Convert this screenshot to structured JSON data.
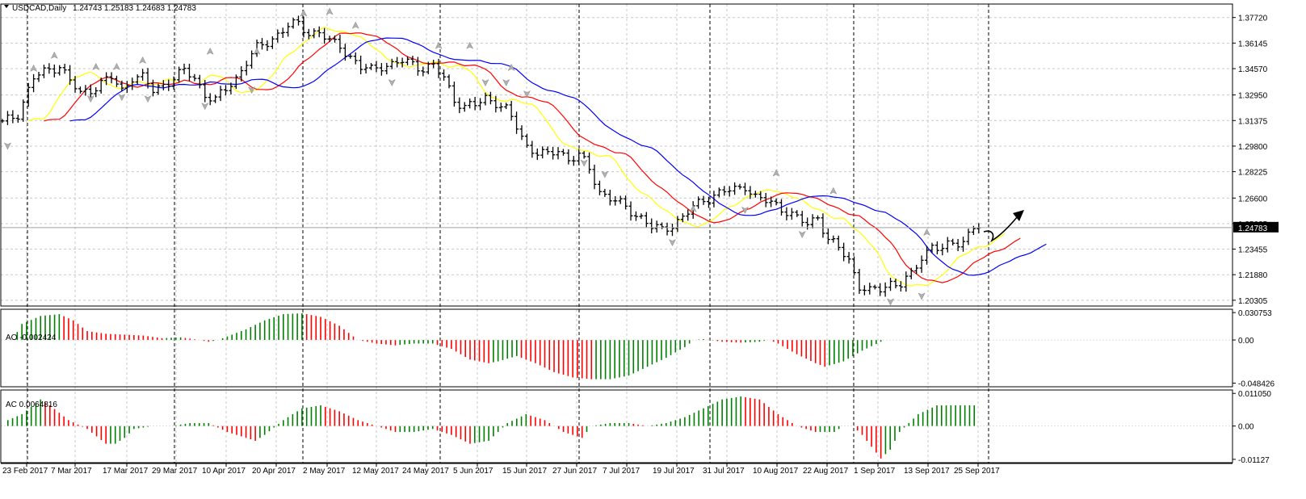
{
  "window": {
    "title": "USDCAD,Daily",
    "ohlc": "1.24743 1.25183 1.24683 1.24783",
    "title_arrow_icon": "triangle-down-icon"
  },
  "colors": {
    "background": "#ffffff",
    "grid": "#c8c8c8",
    "bars": "#000000",
    "fractal": "#b0b0b0",
    "ma_fast": "#ffff00",
    "ma_mid": "#ff0000",
    "ma_slow": "#0000ff",
    "osc_up": "#008000",
    "osc_down": "#ff0000",
    "price_tag_bg": "#000000",
    "price_tag_text": "#ffffff"
  },
  "chart_data": [
    {
      "type": "candlestick",
      "title": "USDCAD,Daily",
      "subtitle": "1.24743 1.25183 1.24683 1.24783",
      "y_ticks": [
        "1.37720",
        "1.36145",
        "1.34570",
        "1.32950",
        "1.31375",
        "1.29800",
        "1.28225",
        "1.26600",
        "1.25025",
        "1.23455",
        "1.21880",
        "1.20305"
      ],
      "current_price": "1.24783",
      "ylim": [
        1.1995,
        1.3855
      ],
      "grid": true,
      "x_labels": [
        "23 Feb 2017",
        "7 Mar 2017",
        "17 Mar 2017",
        "29 Mar 2017",
        "10 Apr 2017",
        "20 Apr 2017",
        "2 May 2017",
        "12 May 2017",
        "24 May 2017",
        "5 Jun 2017",
        "15 Jun 2017",
        "27 Jun 2017",
        "7 Jul 2017",
        "19 Jul 2017",
        "31 Jul 2017",
        "10 Aug 2017",
        "22 Aug 2017",
        "1 Sep 2017",
        "13 Sep 2017",
        "25 Sep 2017"
      ],
      "close_keypoints": [
        [
          0,
          1.312
        ],
        [
          3,
          1.318
        ],
        [
          6,
          1.34
        ],
        [
          9,
          1.345
        ],
        [
          11,
          1.348
        ],
        [
          13,
          1.338
        ],
        [
          15,
          1.33
        ],
        [
          17,
          1.333
        ],
        [
          19,
          1.337
        ],
        [
          21,
          1.34
        ],
        [
          23,
          1.332
        ],
        [
          25,
          1.341
        ],
        [
          27,
          1.34
        ],
        [
          29,
          1.332
        ],
        [
          31,
          1.336
        ],
        [
          33,
          1.34
        ],
        [
          35,
          1.344
        ],
        [
          37,
          1.34
        ],
        [
          39,
          1.33
        ],
        [
          41,
          1.326
        ],
        [
          43,
          1.333
        ],
        [
          45,
          1.34
        ],
        [
          47,
          1.35
        ],
        [
          49,
          1.358
        ],
        [
          51,
          1.362
        ],
        [
          53,
          1.367
        ],
        [
          55,
          1.372
        ],
        [
          57,
          1.373
        ],
        [
          59,
          1.368
        ],
        [
          61,
          1.368
        ],
        [
          63,
          1.362
        ],
        [
          65,
          1.36
        ],
        [
          67,
          1.353
        ],
        [
          69,
          1.346
        ],
        [
          71,
          1.345
        ],
        [
          73,
          1.348
        ],
        [
          75,
          1.348
        ],
        [
          77,
          1.35
        ],
        [
          79,
          1.349
        ],
        [
          81,
          1.346
        ],
        [
          83,
          1.347
        ],
        [
          85,
          1.34
        ],
        [
          87,
          1.327
        ],
        [
          89,
          1.322
        ],
        [
          91,
          1.323
        ],
        [
          93,
          1.328
        ],
        [
          95,
          1.325
        ],
        [
          97,
          1.32
        ],
        [
          99,
          1.31
        ],
        [
          101,
          1.298
        ],
        [
          103,
          1.294
        ],
        [
          105,
          1.292
        ],
        [
          107,
          1.296
        ],
        [
          109,
          1.29
        ],
        [
          111,
          1.292
        ],
        [
          113,
          1.284
        ],
        [
          115,
          1.27
        ],
        [
          117,
          1.266
        ],
        [
          119,
          1.262
        ],
        [
          121,
          1.258
        ],
        [
          123,
          1.254
        ],
        [
          125,
          1.248
        ],
        [
          127,
          1.246
        ],
        [
          129,
          1.25
        ],
        [
          131,
          1.254
        ],
        [
          133,
          1.26
        ],
        [
          135,
          1.265
        ],
        [
          137,
          1.268
        ],
        [
          139,
          1.27
        ],
        [
          141,
          1.271
        ],
        [
          143,
          1.274
        ],
        [
          145,
          1.266
        ],
        [
          147,
          1.264
        ],
        [
          149,
          1.262
        ],
        [
          151,
          1.258
        ],
        [
          153,
          1.253
        ],
        [
          155,
          1.25
        ],
        [
          157,
          1.255
        ],
        [
          159,
          1.24
        ],
        [
          161,
          1.235
        ],
        [
          163,
          1.228
        ],
        [
          165,
          1.212
        ],
        [
          167,
          1.208
        ],
        [
          169,
          1.21
        ],
        [
          171,
          1.214
        ],
        [
          173,
          1.213
        ],
        [
          175,
          1.218
        ],
        [
          177,
          1.23
        ],
        [
          179,
          1.237
        ],
        [
          181,
          1.234
        ],
        [
          183,
          1.238
        ],
        [
          185,
          1.24
        ],
        [
          187,
          1.248
        ],
        [
          188,
          1.248
        ]
      ],
      "fractals": [
        {
          "i": 1,
          "dir": "down",
          "price": 1.2985
        },
        {
          "i": 6,
          "dir": "up",
          "price": 1.3455
        },
        {
          "i": 10,
          "dir": "up",
          "price": 1.3535
        },
        {
          "i": 18,
          "dir": "up",
          "price": 1.3465
        },
        {
          "i": 22,
          "dir": "up",
          "price": 1.3465
        },
        {
          "i": 27,
          "dir": "up",
          "price": 1.3505
        },
        {
          "i": 17,
          "dir": "down",
          "price": 1.3275
        },
        {
          "i": 23,
          "dir": "down",
          "price": 1.3285
        },
        {
          "i": 28,
          "dir": "down",
          "price": 1.3275
        },
        {
          "i": 40,
          "dir": "up",
          "price": 1.356
        },
        {
          "i": 39,
          "dir": "down",
          "price": 1.323
        },
        {
          "i": 49,
          "dir": "up",
          "price": 1.356
        },
        {
          "i": 48,
          "dir": "down",
          "price": 1.333
        },
        {
          "i": 58,
          "dir": "up",
          "price": 1.3795
        },
        {
          "i": 63,
          "dir": "up",
          "price": 1.3805
        },
        {
          "i": 68,
          "dir": "up",
          "price": 1.372
        },
        {
          "i": 75,
          "dir": "down",
          "price": 1.3375
        },
        {
          "i": 84,
          "dir": "up",
          "price": 1.3595
        },
        {
          "i": 90,
          "dir": "up",
          "price": 1.3595
        },
        {
          "i": 93,
          "dir": "down",
          "price": 1.3375
        },
        {
          "i": 97,
          "dir": "down",
          "price": 1.3375
        },
        {
          "i": 98,
          "dir": "up",
          "price": 1.346
        },
        {
          "i": 101,
          "dir": "down",
          "price": 1.3305
        },
        {
          "i": 112,
          "dir": "down",
          "price": 1.288
        },
        {
          "i": 116,
          "dir": "down",
          "price": 1.281
        },
        {
          "i": 129,
          "dir": "down",
          "price": 1.239
        },
        {
          "i": 133,
          "dir": "up",
          "price": 1.259
        },
        {
          "i": 143,
          "dir": "down",
          "price": 1.259
        },
        {
          "i": 149,
          "dir": "up",
          "price": 1.281
        },
        {
          "i": 154,
          "dir": "down",
          "price": 1.244
        },
        {
          "i": 160,
          "dir": "up",
          "price": 1.27
        },
        {
          "i": 171,
          "dir": "down",
          "price": 1.2025
        },
        {
          "i": 177,
          "dir": "down",
          "price": 1.206
        },
        {
          "i": 178,
          "dir": "up",
          "price": 1.2445
        }
      ],
      "series": [
        {
          "kind": "ma_fast"
        },
        {
          "kind": "ma_mid"
        },
        {
          "kind": "ma_slow"
        }
      ]
    },
    {
      "type": "bar",
      "label": "AO -0.002424",
      "y_ticks": [
        "0.030753",
        "0.00",
        "-0.048426"
      ],
      "ylim": [
        -0.0525,
        0.0345
      ],
      "keypoints": [
        [
          0,
          0.0
        ],
        [
          2,
          0.0
        ],
        [
          4,
          0.018
        ],
        [
          8,
          0.027
        ],
        [
          12,
          0.029
        ],
        [
          15,
          0.022
        ],
        [
          18,
          0.01
        ],
        [
          22,
          0.007
        ],
        [
          26,
          0.006
        ],
        [
          30,
          0.005
        ],
        [
          34,
          0.002
        ],
        [
          38,
          0.003
        ],
        [
          42,
          0.0
        ],
        [
          44,
          -0.002
        ],
        [
          46,
          0.0
        ],
        [
          48,
          0.004
        ],
        [
          52,
          0.012
        ],
        [
          56,
          0.022
        ],
        [
          60,
          0.029
        ],
        [
          64,
          0.03
        ],
        [
          68,
          0.026
        ],
        [
          72,
          0.016
        ],
        [
          74,
          0.008
        ],
        [
          76,
          0.0
        ],
        [
          80,
          -0.004
        ],
        [
          84,
          -0.006
        ],
        [
          88,
          -0.004
        ],
        [
          92,
          -0.004
        ],
        [
          96,
          -0.01
        ],
        [
          100,
          -0.022
        ],
        [
          104,
          -0.026
        ],
        [
          106,
          -0.024
        ],
        [
          110,
          -0.018
        ],
        [
          114,
          -0.026
        ],
        [
          118,
          -0.036
        ],
        [
          122,
          -0.042
        ],
        [
          126,
          -0.044
        ],
        [
          130,
          -0.044
        ],
        [
          134,
          -0.04
        ],
        [
          138,
          -0.03
        ],
        [
          142,
          -0.02
        ],
        [
          146,
          -0.008
        ],
        [
          148,
          0.0
        ],
        [
          150,
          0.001
        ],
        [
          154,
          -0.002
        ],
        [
          158,
          -0.003
        ],
        [
          162,
          -0.002
        ],
        [
          164,
          0.0
        ],
        [
          166,
          -0.004
        ],
        [
          170,
          -0.016
        ],
        [
          174,
          -0.026
        ],
        [
          176,
          -0.03
        ],
        [
          180,
          -0.024
        ],
        [
          184,
          -0.012
        ],
        [
          188,
          -0.002
        ]
      ]
    },
    {
      "type": "bar",
      "label": "AC 0.0064816",
      "y_ticks": [
        "0.011050",
        "0.00",
        "-0.01127"
      ],
      "ylim": [
        -0.0124,
        0.0122
      ],
      "keypoints": [
        [
          0,
          0.0
        ],
        [
          1,
          0.002
        ],
        [
          4,
          0.004
        ],
        [
          8,
          0.009
        ],
        [
          10,
          0.007
        ],
        [
          14,
          0.002
        ],
        [
          18,
          -0.001
        ],
        [
          22,
          -0.006
        ],
        [
          24,
          -0.006
        ],
        [
          26,
          -0.004
        ],
        [
          28,
          -0.001
        ],
        [
          32,
          0.0
        ],
        [
          36,
          0.0
        ],
        [
          40,
          0.001
        ],
        [
          44,
          0.001
        ],
        [
          48,
          -0.002
        ],
        [
          52,
          -0.004
        ],
        [
          54,
          -0.005
        ],
        [
          56,
          -0.003
        ],
        [
          60,
          0.002
        ],
        [
          64,
          0.006
        ],
        [
          68,
          0.007
        ],
        [
          72,
          0.005
        ],
        [
          76,
          0.002
        ],
        [
          80,
          0.0
        ],
        [
          84,
          -0.002
        ],
        [
          88,
          -0.002
        ],
        [
          92,
          -0.001
        ],
        [
          96,
          -0.003
        ],
        [
          100,
          -0.006
        ],
        [
          104,
          -0.005
        ],
        [
          108,
          0.001
        ],
        [
          112,
          0.004
        ],
        [
          116,
          0.002
        ],
        [
          120,
          -0.002
        ],
        [
          124,
          -0.004
        ],
        [
          126,
          0.0
        ],
        [
          130,
          0.001
        ],
        [
          134,
          0.001
        ],
        [
          138,
          0.0
        ],
        [
          142,
          0.001
        ],
        [
          146,
          0.003
        ],
        [
          150,
          0.006
        ],
        [
          154,
          0.009
        ],
        [
          158,
          0.01
        ],
        [
          162,
          0.009
        ],
        [
          166,
          0.004
        ],
        [
          170,
          0.0
        ],
        [
          174,
          -0.002
        ],
        [
          178,
          -0.002
        ],
        [
          180,
          0.0
        ],
        [
          182,
          0.0
        ],
        [
          184,
          -0.003
        ],
        [
          188,
          -0.011
        ],
        [
          190,
          -0.008
        ],
        [
          192,
          -0.002
        ],
        [
          196,
          0.004
        ],
        [
          200,
          0.007
        ],
        [
          204,
          0.007
        ],
        [
          208,
          0.007
        ]
      ]
    }
  ]
}
